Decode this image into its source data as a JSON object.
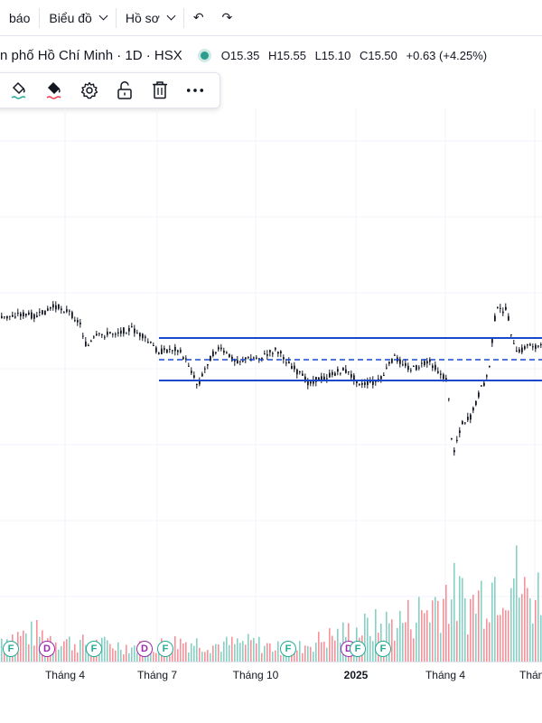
{
  "toolbar": {
    "partial_label": "báo",
    "chart_label": "Biểu đồ",
    "profile_label": "Hồ sơ",
    "undo_glyph": "↶",
    "redo_glyph": "↷"
  },
  "legend": {
    "symbol_text": "n phố Hồ Chí Minh · 1D · HSX",
    "open": "O15.35",
    "high": "H15.55",
    "low": "L15.10",
    "close": "C15.50",
    "change": "+0.63 (+4.25%)",
    "status_color": "#2a9d8f"
  },
  "drawing_toolbar": {
    "icons": [
      "line-color-icon",
      "fill-color-icon",
      "settings-gear-icon",
      "unlock-icon",
      "trash-icon",
      "more-icon"
    ]
  },
  "chart_data": {
    "type": "candlestick",
    "colors": {
      "up": "#22ab94",
      "down": "#f23645",
      "candle": "#131722",
      "channel": "#1848cc"
    },
    "price_path": [
      [
        0,
        0.22
      ],
      [
        20,
        0.18
      ],
      [
        40,
        0.2
      ],
      [
        60,
        0.12
      ],
      [
        75,
        0.16
      ],
      [
        88,
        0.26
      ],
      [
        95,
        0.45
      ],
      [
        105,
        0.36
      ],
      [
        125,
        0.33
      ],
      [
        145,
        0.3
      ],
      [
        160,
        0.38
      ],
      [
        175,
        0.48
      ],
      [
        195,
        0.45
      ],
      [
        208,
        0.58
      ],
      [
        218,
        0.75
      ],
      [
        230,
        0.55
      ],
      [
        240,
        0.45
      ],
      [
        260,
        0.55
      ],
      [
        290,
        0.52
      ],
      [
        305,
        0.46
      ],
      [
        320,
        0.58
      ],
      [
        340,
        0.72
      ],
      [
        360,
        0.68
      ],
      [
        380,
        0.62
      ],
      [
        400,
        0.74
      ],
      [
        420,
        0.71
      ],
      [
        435,
        0.52
      ],
      [
        455,
        0.62
      ],
      [
        475,
        0.56
      ],
      [
        495,
        0.72
      ],
      [
        500,
        1.3
      ],
      [
        510,
        1.05
      ],
      [
        520,
        1.0
      ],
      [
        530,
        0.8
      ],
      [
        540,
        0.65
      ],
      [
        548,
        0.15
      ],
      [
        560,
        0.15
      ],
      [
        570,
        0.5
      ],
      [
        585,
        0.42
      ],
      [
        600,
        0.45
      ]
    ],
    "volume_path": [
      [
        0,
        0.25
      ],
      [
        40,
        0.3
      ],
      [
        80,
        0.2
      ],
      [
        120,
        0.18
      ],
      [
        160,
        0.15
      ],
      [
        200,
        0.22
      ],
      [
        240,
        0.18
      ],
      [
        280,
        0.2
      ],
      [
        320,
        0.12
      ],
      [
        360,
        0.25
      ],
      [
        400,
        0.35
      ],
      [
        440,
        0.42
      ],
      [
        470,
        0.55
      ],
      [
        495,
        0.75
      ],
      [
        520,
        0.6
      ],
      [
        548,
        0.9
      ],
      [
        565,
        1.0
      ],
      [
        580,
        0.7
      ],
      [
        600,
        0.75
      ]
    ],
    "x_labels": [
      {
        "label": "Tháng 4"
      },
      {
        "label": "Tháng 7"
      },
      {
        "label": "Tháng 10"
      },
      {
        "label": "2025"
      },
      {
        "label": "Tháng 4"
      },
      {
        "label": "Tháng"
      }
    ],
    "events": [
      {
        "type": "F"
      },
      {
        "type": "D"
      },
      {
        "type": "F"
      },
      {
        "type": "D"
      },
      {
        "type": "F"
      },
      {
        "type": "F"
      },
      {
        "type": "D"
      },
      {
        "type": "F"
      },
      {
        "type": "F"
      }
    ]
  }
}
